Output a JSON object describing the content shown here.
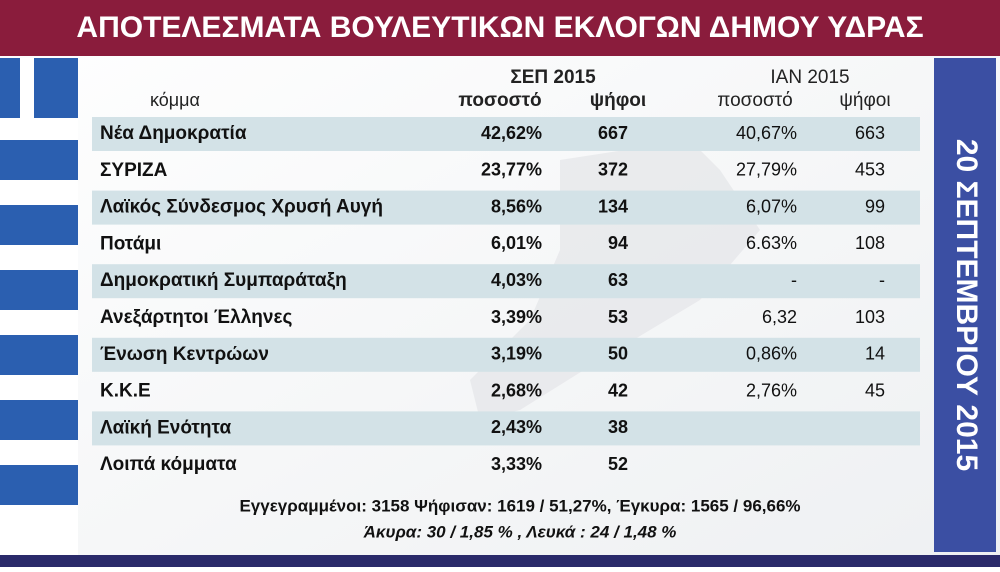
{
  "header": {
    "title": "ΑΠΟΤΕΛΕΣΜΑΤΑ ΒΟΥΛΕΥΤΙΚΩΝ ΕΚΛΟΓΩΝ ΔΗΜΟΥ ΥΔΡΑΣ"
  },
  "side": {
    "date": "20 ΣΕΠΤΕΜΒΡΙΟΥ 2015"
  },
  "table": {
    "party_header": "κόμμα",
    "sep": {
      "title": "ΣΕΠ 2015",
      "pct": "ποσοστό",
      "votes": "ψήφοι"
    },
    "ian": {
      "title": "ΙΑΝ 2015",
      "pct": "ποσοστό",
      "votes": "ψήφοι"
    },
    "rows": [
      {
        "party": "Νέα Δημοκρατία",
        "sep_pct": "42,62%",
        "sep_votes": "667",
        "ian_pct": "40,67%",
        "ian_votes": "663"
      },
      {
        "party": "ΣΥΡΙΖΑ",
        "sep_pct": "23,77%",
        "sep_votes": "372",
        "ian_pct": "27,79%",
        "ian_votes": "453"
      },
      {
        "party": "Λαϊκός Σύνδεσμος Χρυσή Αυγή",
        "sep_pct": "8,56%",
        "sep_votes": "134",
        "ian_pct": "6,07%",
        "ian_votes": "99"
      },
      {
        "party": "Ποτάμι",
        "sep_pct": "6,01%",
        "sep_votes": "94",
        "ian_pct": "6.63%",
        "ian_votes": "108"
      },
      {
        "party": "Δημοκρατική Συμπαράταξη",
        "sep_pct": "4,03%",
        "sep_votes": "63",
        "ian_pct": "-",
        "ian_votes": "-"
      },
      {
        "party": "Ανεξάρτητοι Έλληνες",
        "sep_pct": "3,39%",
        "sep_votes": "53",
        "ian_pct": "6,32",
        "ian_votes": "103"
      },
      {
        "party": "Ένωση Κεντρώων",
        "sep_pct": "3,19%",
        "sep_votes": "50",
        "ian_pct": "0,86%",
        "ian_votes": "14"
      },
      {
        "party": "Κ.Κ.Ε",
        "sep_pct": "2,68%",
        "sep_votes": "42",
        "ian_pct": "2,76%",
        "ian_votes": "45"
      },
      {
        "party": "Λαϊκή Ενότητα",
        "sep_pct": "2,43%",
        "sep_votes": "38"
      },
      {
        "party": "Λοιπά κόμματα",
        "sep_pct": "3,33%",
        "sep_votes": "52"
      }
    ]
  },
  "footer": {
    "line1": "Εγγεγραμμένοι: 3158 Ψήφισαν: 1619 / 51,27%, Έγκυρα: 1565 / 96,66%",
    "line2": "Άκυρα: 30 / 1,85 % , Λευκά : 24 / 1,48 %"
  }
}
